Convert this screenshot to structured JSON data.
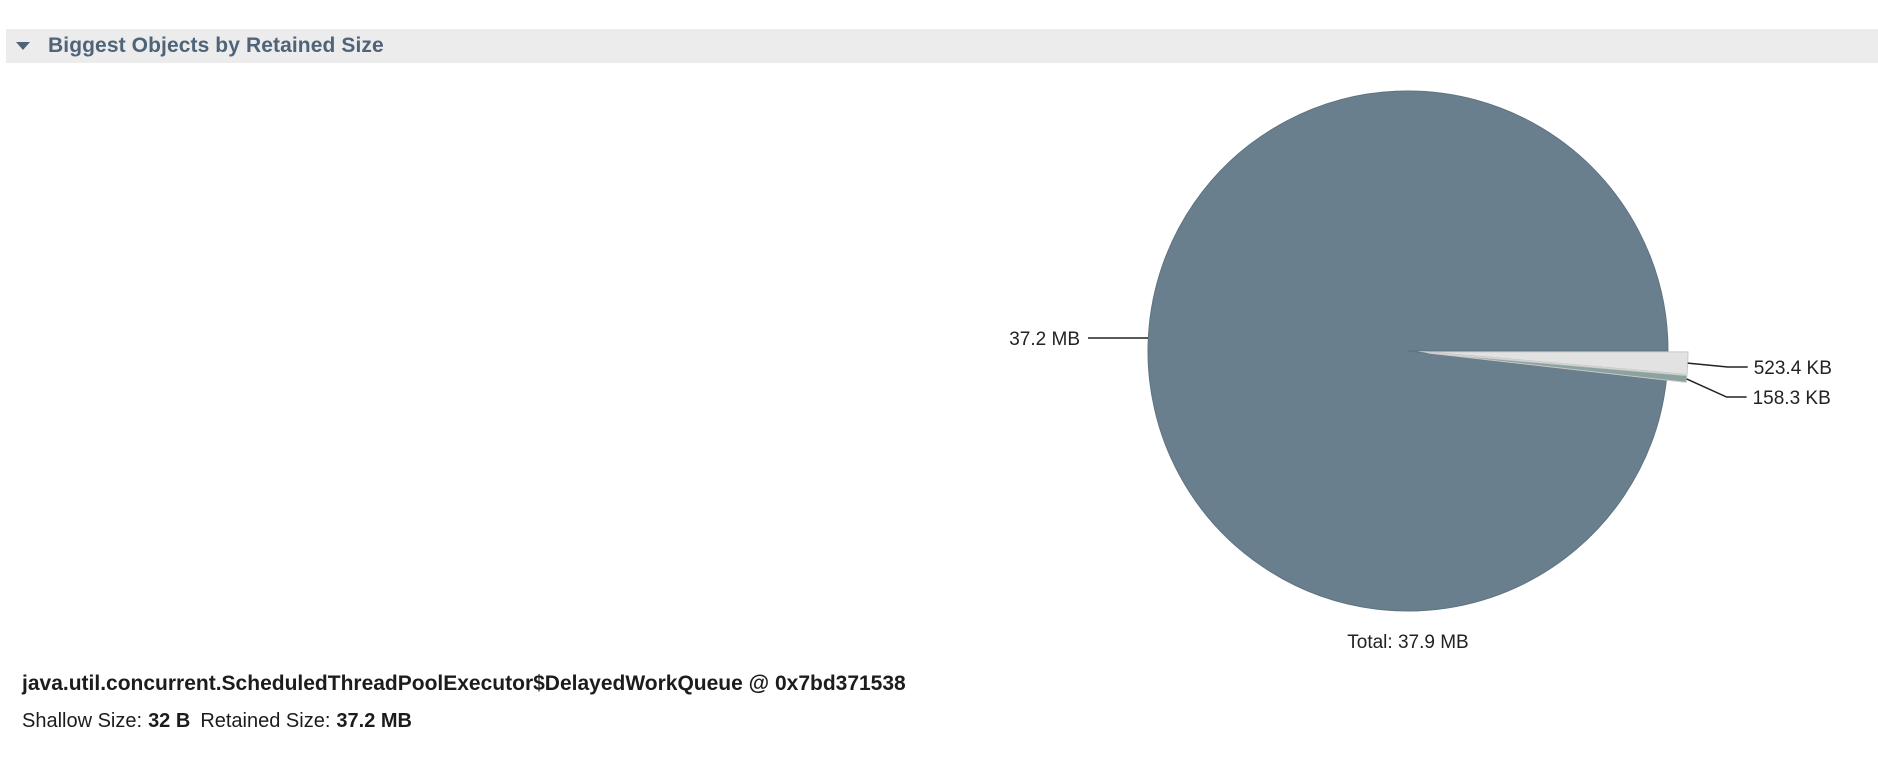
{
  "section": {
    "title": "Biggest Objects by Retained Size",
    "toggle_icon": "triangle-down-icon"
  },
  "chart_data": {
    "type": "pie",
    "slices": [
      {
        "label": "37.2 MB",
        "value": 37.2,
        "unit": "MB",
        "color": "#697f8e"
      },
      {
        "label": "523.4 KB",
        "value": 0.5234,
        "unit": "MB",
        "color": "#e2e2e2"
      },
      {
        "label": "158.3 KB",
        "value": 0.1583,
        "unit": "MB",
        "color": "#8aa3a0"
      }
    ],
    "total_label": "Total: 37.9 MB",
    "legend": "none"
  },
  "object": {
    "name": "java.util.concurrent.ScheduledThreadPoolExecutor$DelayedWorkQueue @ 0x7bd371538",
    "shallow_size_label": "Shallow Size:",
    "shallow_size_value": "32 B",
    "retained_size_label": "Retained Size:",
    "retained_size_value": "37.2 MB"
  },
  "colors": {
    "header_background": "#ececec",
    "header_text": "#4f6479",
    "large_slice": "#697f8e"
  }
}
